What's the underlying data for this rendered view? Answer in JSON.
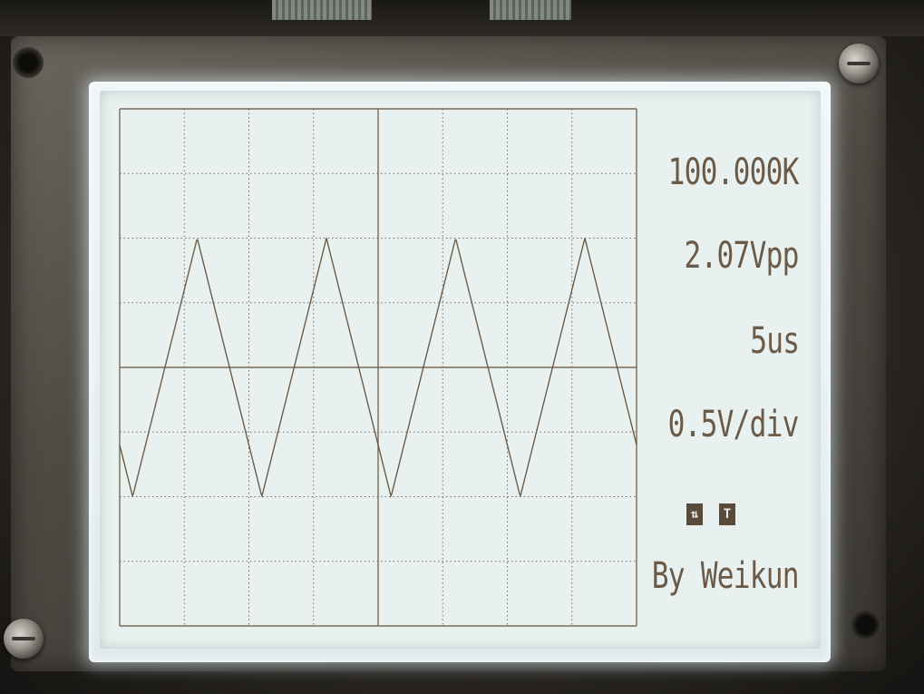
{
  "readouts": {
    "frequency": "100.000K",
    "amplitude": "2.07Vpp",
    "timebase": "5us",
    "volts_per_div": "0.5V/div",
    "credit": "By Weikun"
  },
  "status_icons": [
    "trigger-edge-icon",
    "trigger-mode-icon"
  ],
  "colors": {
    "lcd_background": "#e8f1f0",
    "ink": "#6b5a47",
    "grid": "#7a6a58"
  },
  "waveform": {
    "type": "triangle",
    "cycles_shown": 4
  }
}
